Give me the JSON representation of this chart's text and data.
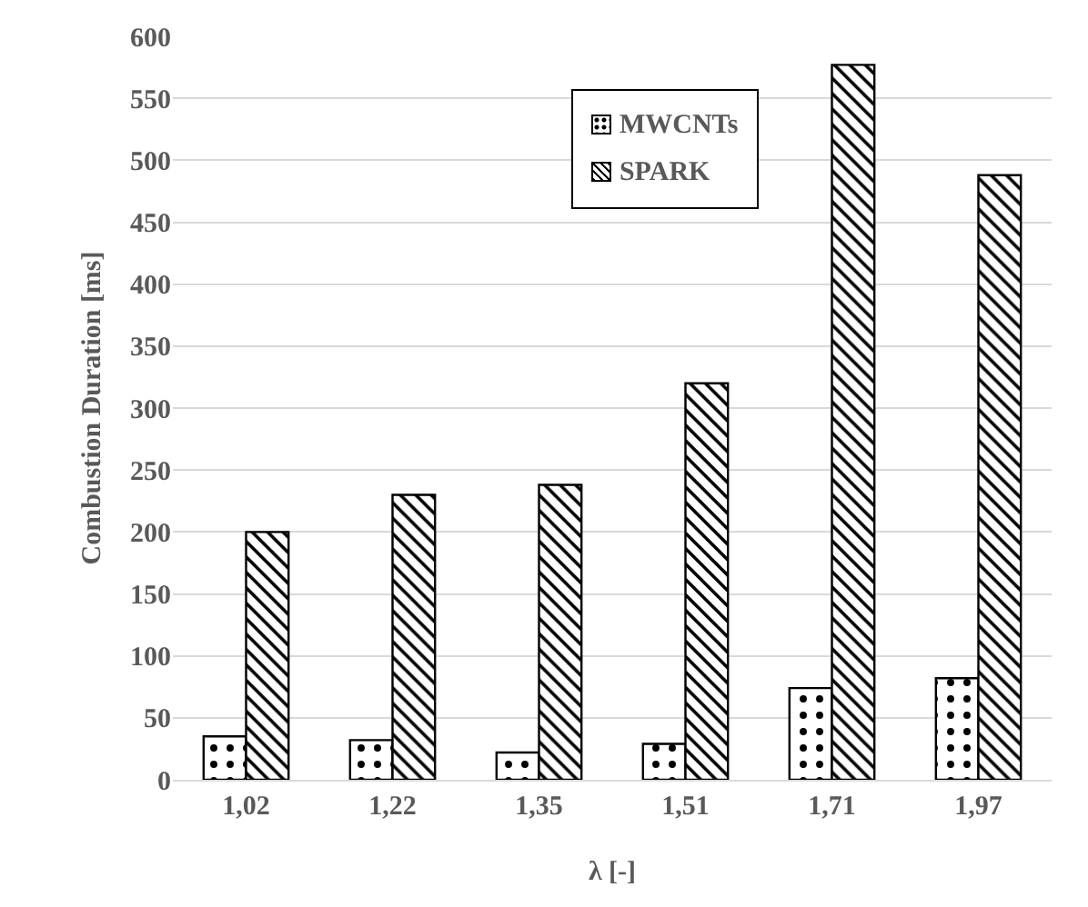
{
  "chart_data": {
    "type": "bar",
    "xlabel": "λ [-]",
    "ylabel": "Combustion Duration [ms]",
    "categories": [
      "1,02",
      "1,22",
      "1,35",
      "1,51",
      "1,71",
      "1,97"
    ],
    "series": [
      {
        "name": "MWCNTs",
        "color": "#000000",
        "values": [
          35,
          32,
          22,
          29,
          74,
          82
        ]
      },
      {
        "name": "SPARK",
        "color": "#000000",
        "values": [
          200,
          230,
          238,
          320,
          577,
          488
        ]
      }
    ],
    "ylim": [
      0,
      600
    ],
    "yticks": [
      0,
      50,
      100,
      150,
      200,
      250,
      300,
      350,
      400,
      450,
      500,
      550,
      600
    ],
    "grid": "y",
    "legend": "top"
  }
}
